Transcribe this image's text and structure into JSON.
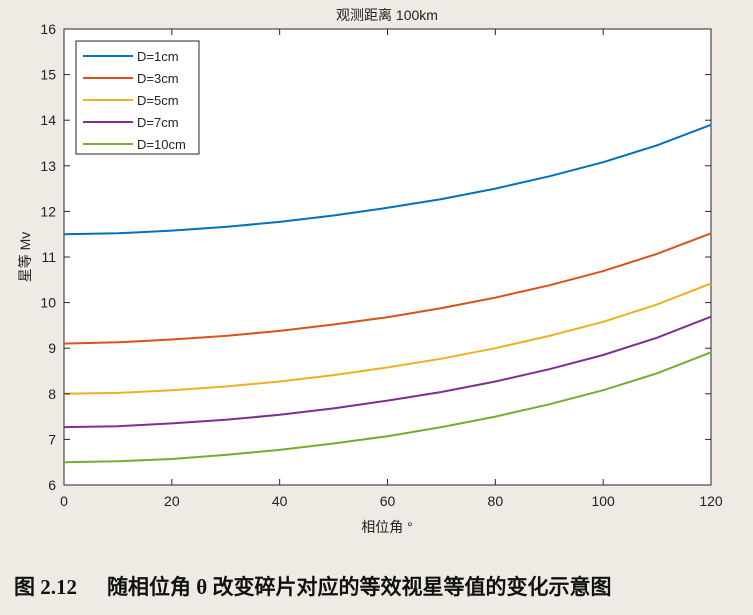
{
  "chart_data": {
    "type": "line",
    "title": "观测距离 100km",
    "xlabel": "相位角 °",
    "ylabel": "星等 Mv",
    "xlim": [
      0,
      120
    ],
    "ylim": [
      6,
      16
    ],
    "xticks": [
      0,
      20,
      40,
      60,
      80,
      100,
      120
    ],
    "yticks": [
      6,
      7,
      8,
      9,
      10,
      11,
      12,
      13,
      14,
      15,
      16
    ],
    "grid": false,
    "legend": "top-left",
    "x": [
      0,
      10,
      20,
      30,
      40,
      50,
      60,
      70,
      80,
      90,
      100,
      110,
      120
    ],
    "series": [
      {
        "name": "D=1cm",
        "color": "#0072bd",
        "values": [
          11.5,
          11.52,
          11.58,
          11.66,
          11.77,
          11.91,
          12.08,
          12.27,
          12.5,
          12.77,
          13.08,
          13.45,
          13.9
        ]
      },
      {
        "name": "D=3cm",
        "color": "#d95319",
        "values": [
          9.1,
          9.13,
          9.19,
          9.27,
          9.38,
          9.52,
          9.68,
          9.88,
          10.11,
          10.38,
          10.69,
          11.07,
          11.52
        ]
      },
      {
        "name": "D=5cm",
        "color": "#edb120",
        "values": [
          8.0,
          8.02,
          8.08,
          8.16,
          8.27,
          8.41,
          8.58,
          8.77,
          9.0,
          9.27,
          9.58,
          9.96,
          10.42
        ]
      },
      {
        "name": "D=7cm",
        "color": "#7e2f8e",
        "values": [
          7.27,
          7.29,
          7.35,
          7.43,
          7.54,
          7.68,
          7.85,
          8.04,
          8.27,
          8.54,
          8.85,
          9.23,
          9.69
        ]
      },
      {
        "name": "D=10cm",
        "color": "#77ac30",
        "values": [
          6.5,
          6.52,
          6.57,
          6.66,
          6.77,
          6.91,
          7.07,
          7.27,
          7.5,
          7.77,
          8.08,
          8.45,
          8.91
        ]
      }
    ]
  },
  "caption": {
    "number": "图  2.12",
    "text": "随相位角 θ 改变碎片对应的等效视星等值的变化示意图"
  }
}
